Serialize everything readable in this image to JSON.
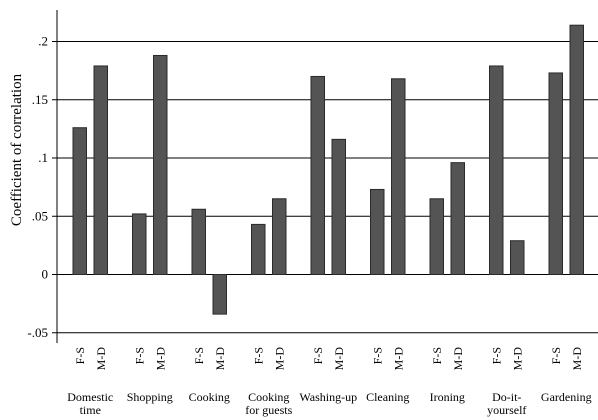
{
  "chart_data": {
    "type": "bar",
    "title": "",
    "ylabel": "Coefficient of correlation",
    "xlabel": "",
    "ylim": [
      -0.06,
      0.2
    ],
    "grid": true,
    "yticks": [
      {
        "value": 0.2,
        "label": ".2"
      },
      {
        "value": 0.15,
        "label": ".15"
      },
      {
        "value": 0.1,
        "label": ".1"
      },
      {
        "value": 0.05,
        "label": ".05"
      },
      {
        "value": 0,
        "label": "0"
      },
      {
        "value": -0.05,
        "label": "-.05"
      }
    ],
    "groups": [
      {
        "name_lines": [
          "Domestic",
          "time"
        ],
        "bars": [
          {
            "label": "F-S",
            "value": 0.126
          },
          {
            "label": "M-D",
            "value": 0.179
          }
        ]
      },
      {
        "name_lines": [
          "Shopping"
        ],
        "bars": [
          {
            "label": "F-S",
            "value": 0.052
          },
          {
            "label": "M-D",
            "value": 0.188
          }
        ]
      },
      {
        "name_lines": [
          "Cooking"
        ],
        "bars": [
          {
            "label": "F-S",
            "value": 0.056
          },
          {
            "label": "M-D",
            "value": -0.034
          }
        ]
      },
      {
        "name_lines": [
          "Cooking",
          "for guests"
        ],
        "bars": [
          {
            "label": "F-S",
            "value": 0.043
          },
          {
            "label": "M-D",
            "value": 0.065
          }
        ]
      },
      {
        "name_lines": [
          "Washing-up"
        ],
        "bars": [
          {
            "label": "F-S",
            "value": 0.17
          },
          {
            "label": "M-D",
            "value": 0.116
          }
        ]
      },
      {
        "name_lines": [
          "Cleaning"
        ],
        "bars": [
          {
            "label": "F-S",
            "value": 0.073
          },
          {
            "label": "M-D",
            "value": 0.168
          }
        ]
      },
      {
        "name_lines": [
          "Ironing"
        ],
        "bars": [
          {
            "label": "F-S",
            "value": 0.065
          },
          {
            "label": "M-D",
            "value": 0.096
          }
        ]
      },
      {
        "name_lines": [
          "Do-it-",
          "yourself"
        ],
        "bars": [
          {
            "label": "F-S",
            "value": 0.179
          },
          {
            "label": "M-D",
            "value": 0.029
          }
        ]
      },
      {
        "name_lines": [
          "Gardening"
        ],
        "bars": [
          {
            "label": "F-S",
            "value": 0.173
          },
          {
            "label": "M-D",
            "value": 0.214
          }
        ]
      }
    ],
    "colors": {
      "bar_fill": "#545454",
      "bar_stroke": "#2a2a2a",
      "grid": "#000000",
      "axis": "#000000"
    }
  }
}
